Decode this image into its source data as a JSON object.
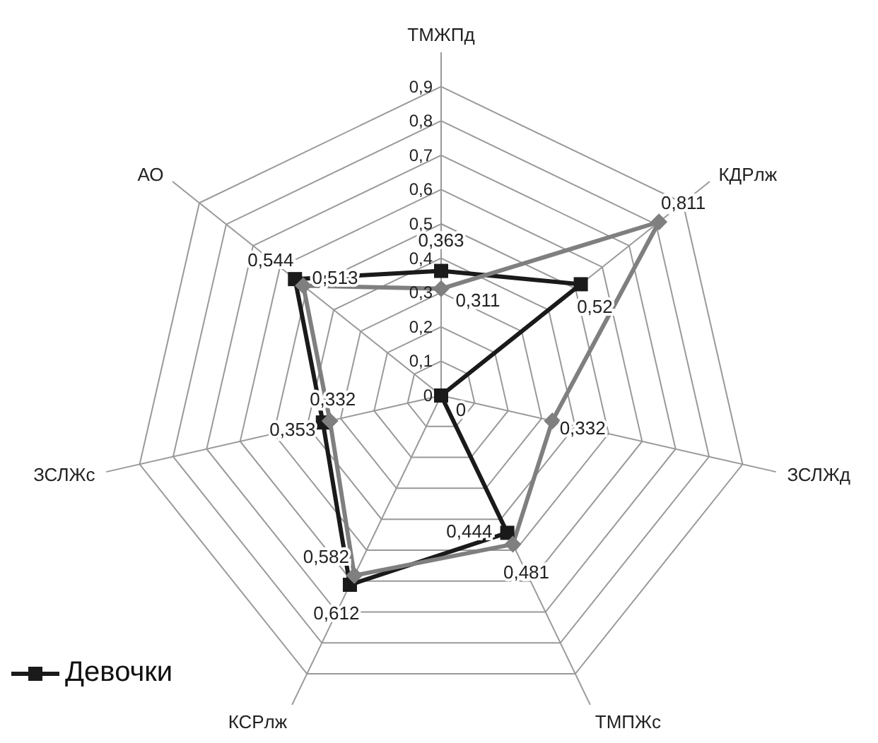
{
  "chart_data": {
    "type": "radar",
    "categories": [
      "ТМЖПд",
      "КДРлж",
      "ЗСЛЖд",
      "ТМПЖс",
      "КСРлж",
      "ЗСЛЖс",
      "АО"
    ],
    "series": [
      {
        "name": "Девочки",
        "color": "#1a1a1a",
        "marker": "square",
        "values": [
          0.363,
          0.52,
          0,
          0.444,
          0.612,
          0.353,
          0.544
        ],
        "value_labels": [
          "0,363",
          "0,52",
          "0",
          "0,444",
          "0,612",
          "0,353",
          "0,544"
        ]
      },
      {
        "color": "#7f7f7f",
        "marker": "diamond",
        "values": [
          0.311,
          0.811,
          0.332,
          0.481,
          0.582,
          0.332,
          0.513
        ],
        "value_labels": [
          "0,311",
          "0,811",
          "0,332",
          "0,481",
          "0,582",
          "0,332",
          "0,513"
        ]
      }
    ],
    "ylim": [
      0,
      0.9
    ],
    "yticks": [
      0,
      {
        "value": 0.1,
        "label": "0,1"
      },
      {
        "value": 0.2,
        "label": "0,2"
      },
      {
        "value": 0.3,
        "label": "0,3"
      },
      {
        "value": 0.4,
        "label": "0,4"
      },
      {
        "value": 0.5,
        "label": "0,5"
      },
      {
        "value": 0.6,
        "label": "0,6"
      },
      {
        "value": 0.7,
        "label": "0,7"
      },
      {
        "value": 0.8,
        "label": "0,8"
      },
      {
        "value": 0.9,
        "label": "0,9"
      }
    ],
    "grid": true,
    "legend": "bottom left",
    "line_style": "solid"
  }
}
